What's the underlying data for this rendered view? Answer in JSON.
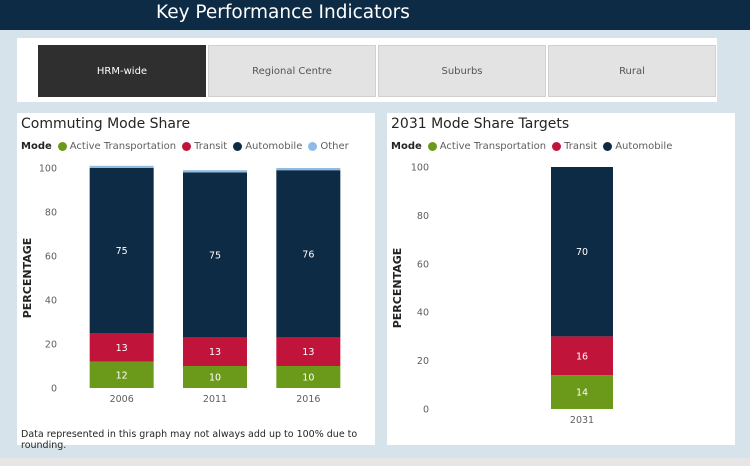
{
  "header": {
    "title": "Key Performance Indicators"
  },
  "tabs": [
    {
      "label": "HRM-wide",
      "active": true
    },
    {
      "label": "Regional Centre",
      "active": false
    },
    {
      "label": "Suburbs",
      "active": false
    },
    {
      "label": "Rural",
      "active": false
    }
  ],
  "colors": {
    "active_transportation": "#6b9a1a",
    "transit": "#c1143a",
    "automobile": "#0d2b45",
    "other": "#8fbce6"
  },
  "chart_data": [
    {
      "type": "bar",
      "stacked": true,
      "title": "Commuting Mode Share",
      "legend_title": "Mode",
      "legend_position": "top-left",
      "categories": [
        "2006",
        "2011",
        "2016"
      ],
      "series": [
        {
          "name": "Active Transportation",
          "values": [
            12,
            10,
            10
          ],
          "color": "#6b9a1a"
        },
        {
          "name": "Transit",
          "values": [
            13,
            13,
            13
          ],
          "color": "#c1143a"
        },
        {
          "name": "Automobile",
          "values": [
            75,
            75,
            76
          ],
          "color": "#0d2b45"
        },
        {
          "name": "Other",
          "values": [
            1,
            1,
            1
          ],
          "color": "#8fbce6"
        }
      ],
      "ylabel": "PERCENTAGE",
      "ylim": [
        0,
        100
      ],
      "yticks": [
        0,
        20,
        40,
        60,
        80,
        100
      ],
      "note": "Data represented in this graph may not always add up to 100% due to rounding."
    },
    {
      "type": "bar",
      "stacked": true,
      "title": "2031 Mode Share Targets",
      "legend_title": "Mode",
      "legend_position": "top-left",
      "categories": [
        "2031"
      ],
      "series": [
        {
          "name": "Active Transportation",
          "values": [
            14
          ],
          "color": "#6b9a1a"
        },
        {
          "name": "Transit",
          "values": [
            16
          ],
          "color": "#c1143a"
        },
        {
          "name": "Automobile",
          "values": [
            70
          ],
          "color": "#0d2b45"
        }
      ],
      "ylabel": "PERCENTAGE",
      "ylim": [
        0,
        100
      ],
      "yticks": [
        0,
        20,
        40,
        60,
        80,
        100
      ]
    }
  ]
}
